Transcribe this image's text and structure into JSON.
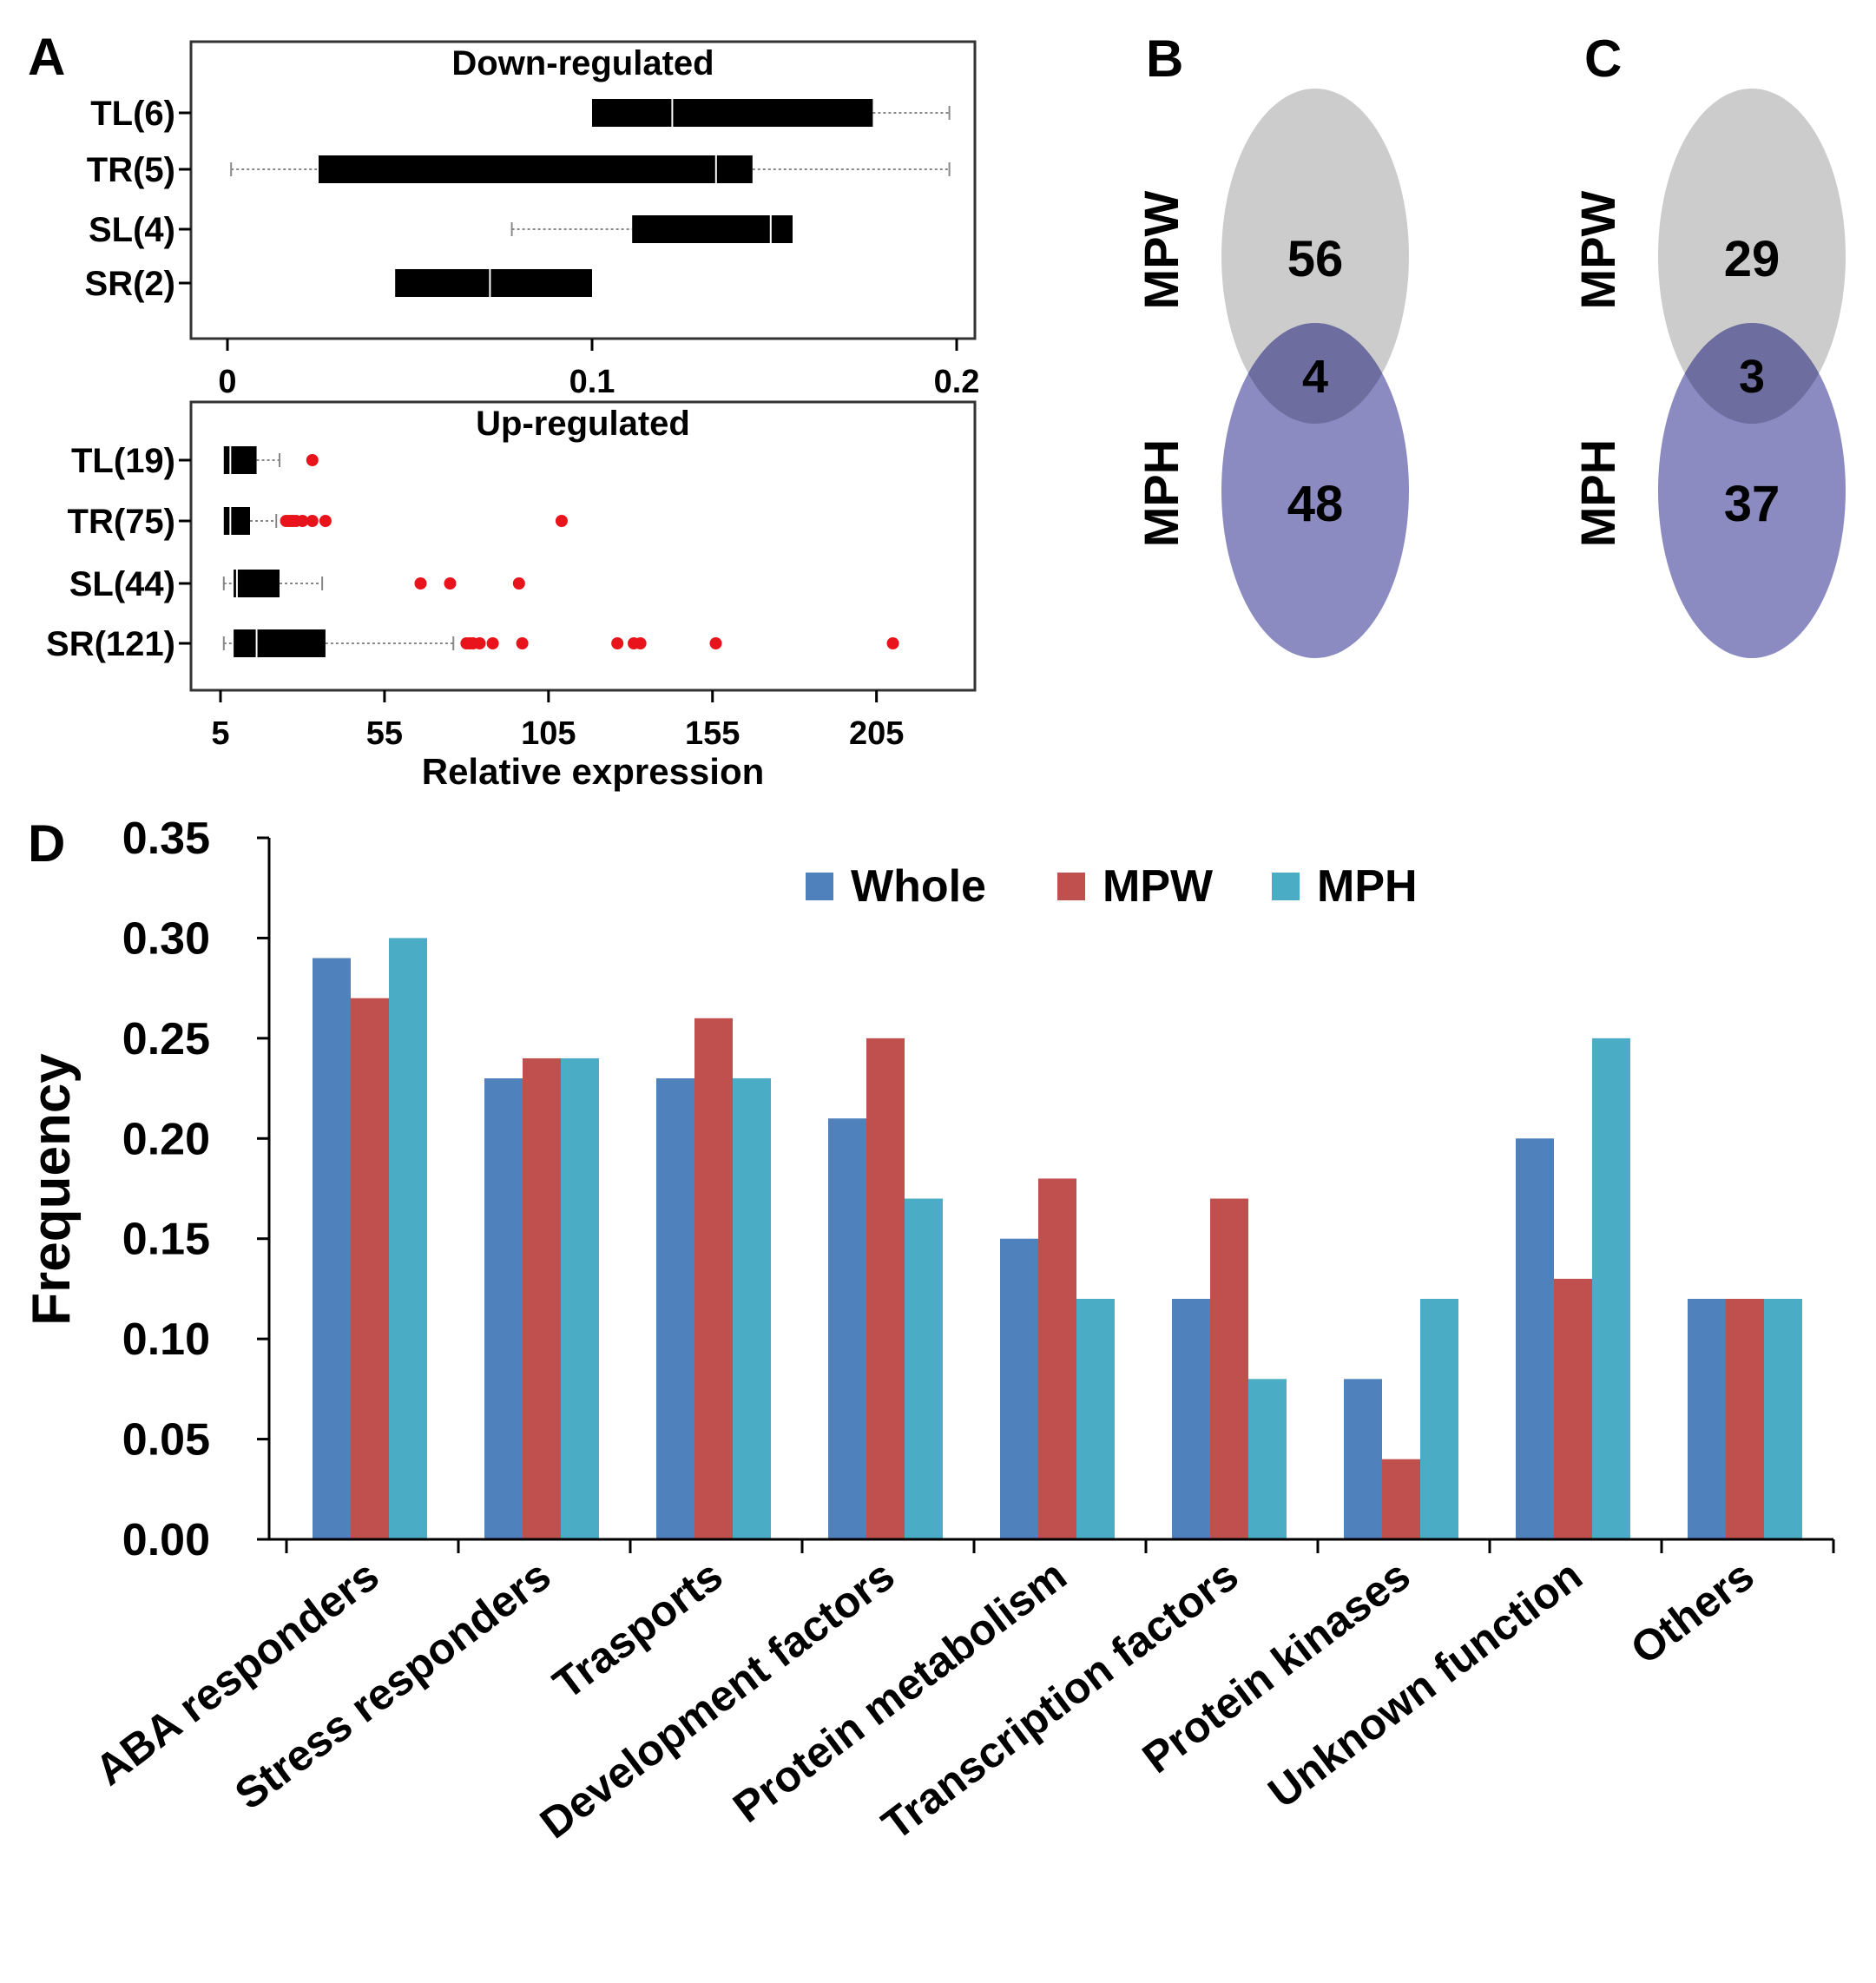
{
  "panel_labels": {
    "a": "A",
    "b": "B",
    "c": "C",
    "d": "D"
  },
  "colors": {
    "box": "#000000",
    "outlier": "#e8131b",
    "venn_top": "#cccccc",
    "venn_bottom": "#8b8bc2",
    "venn_overlap": "#6d6d9f",
    "whole": "#4f81bd",
    "mpw": "#c0504d",
    "mph": "#4bacc6"
  },
  "chart_data": [
    {
      "id": "A-down",
      "type": "box",
      "title": "Down-regulated",
      "xlim": [
        -0.01,
        0.205
      ],
      "ticks": [
        0,
        0.1,
        0.2
      ],
      "tick_labels": [
        "0",
        "0.1",
        "0.2"
      ],
      "categories": [
        "TL(6)",
        "TR(5)",
        "SL(4)",
        "SR(2)"
      ],
      "boxes": [
        {
          "label": "TL(6)",
          "whisker_low": 0.1,
          "q1": 0.1,
          "median": 0.122,
          "q3": 0.177,
          "whisker_high": 0.198,
          "outliers": []
        },
        {
          "label": "TR(5)",
          "whisker_low": 0.001,
          "q1": 0.025,
          "median": 0.134,
          "q3": 0.144,
          "whisker_high": 0.198,
          "outliers": []
        },
        {
          "label": "SL(4)",
          "whisker_low": 0.078,
          "q1": 0.111,
          "median": 0.149,
          "q3": 0.155,
          "whisker_high": 0.155,
          "outliers": []
        },
        {
          "label": "SR(2)",
          "whisker_low": 0.046,
          "q1": 0.046,
          "median": 0.072,
          "q3": 0.1,
          "whisker_high": 0.1,
          "outliers": []
        }
      ]
    },
    {
      "id": "A-up",
      "type": "box",
      "title": "Up-regulated",
      "xlabel": "Relative expression",
      "xlim": [
        -4,
        235
      ],
      "ticks": [
        5,
        55,
        105,
        155,
        205
      ],
      "tick_labels": [
        "5",
        "55",
        "105",
        "155",
        "205"
      ],
      "categories": [
        "TL(19)",
        "TR(75)",
        "SL(44)",
        "SR(121)"
      ],
      "boxes": [
        {
          "label": "TL(19)",
          "whisker_low": 6,
          "q1": 6,
          "median": 8,
          "q3": 16,
          "whisker_high": 23,
          "outliers": [
            33
          ]
        },
        {
          "label": "TR(75)",
          "whisker_low": 6,
          "q1": 6,
          "median": 8,
          "q3": 14,
          "whisker_high": 22,
          "outliers": [
            25,
            26,
            27,
            28,
            30,
            33,
            37,
            109
          ]
        },
        {
          "label": "SL(44)",
          "whisker_low": 6,
          "q1": 9,
          "median": 10,
          "q3": 23,
          "whisker_high": 36,
          "outliers": [
            66,
            75,
            96
          ]
        },
        {
          "label": "SR(121)",
          "whisker_low": 6,
          "q1": 9,
          "median": 16,
          "q3": 37,
          "whisker_high": 76,
          "outliers": [
            80,
            81,
            82,
            84,
            88,
            97,
            126,
            131,
            133,
            156,
            210
          ]
        }
      ]
    },
    {
      "id": "B",
      "type": "venn",
      "sets": [
        "MPW",
        "MPH"
      ],
      "only_top": 56,
      "overlap": 4,
      "only_bottom": 48
    },
    {
      "id": "C",
      "type": "venn",
      "sets": [
        "MPW",
        "MPH"
      ],
      "only_top": 29,
      "overlap": 3,
      "only_bottom": 37
    },
    {
      "id": "D",
      "type": "bar",
      "ylabel": "Frequency",
      "ylim": [
        0,
        0.35
      ],
      "yticks": [
        "0.00",
        "0.05",
        "0.10",
        "0.15",
        "0.20",
        "0.25",
        "0.30",
        "0.35"
      ],
      "legend_position": "top-center",
      "categories": [
        "ABA responders",
        "Stress responders",
        "Trasports",
        "Development factors",
        "Protein metabolism",
        "Transcription factors",
        "Protein kinases",
        "Unknown function",
        "Others"
      ],
      "series": [
        {
          "name": "Whole",
          "values": [
            0.29,
            0.23,
            0.23,
            0.21,
            0.15,
            0.12,
            0.08,
            0.2,
            0.12
          ]
        },
        {
          "name": "MPW",
          "values": [
            0.27,
            0.24,
            0.26,
            0.25,
            0.18,
            0.17,
            0.04,
            0.13,
            0.12
          ]
        },
        {
          "name": "MPH",
          "values": [
            0.3,
            0.24,
            0.23,
            0.17,
            0.12,
            0.08,
            0.12,
            0.25,
            0.12
          ]
        }
      ]
    }
  ]
}
